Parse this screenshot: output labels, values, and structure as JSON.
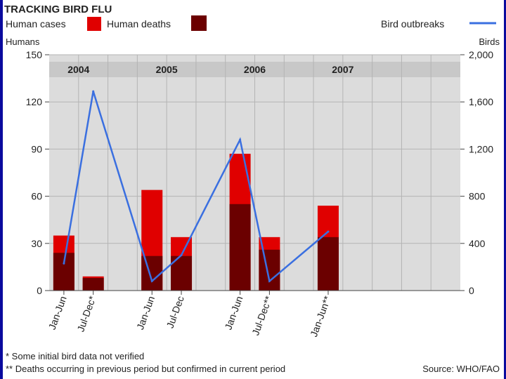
{
  "chart_data": {
    "type": "bar",
    "title": "TRACKING BIRD FLU",
    "legend": [
      {
        "name": "Human cases",
        "color": "#e00000"
      },
      {
        "name": "Human deaths",
        "color": "#6b0000"
      },
      {
        "name": "Bird outbreaks",
        "color": "#3a6fe0"
      }
    ],
    "ylabel_left": "Humans",
    "ylabel_right": "Birds",
    "ylim_left": [
      0,
      150
    ],
    "ylim_right": [
      0,
      2000
    ],
    "yticks_left": [
      "0",
      "30",
      "60",
      "90",
      "120",
      "150"
    ],
    "yticks_right": [
      "0",
      "400",
      "800",
      "1,200",
      "1,600",
      "2,000"
    ],
    "years": [
      "2004",
      "2005",
      "2006",
      "2007"
    ],
    "categories": [
      "Jan-Jun",
      "Jul-Dec*",
      "Jan-Jun",
      "Jul-Dec",
      "Jan-Jun",
      "Jul-Dec**",
      "Jan-Jun**"
    ],
    "category_slots": [
      0,
      1,
      3,
      4,
      6,
      7,
      9
    ],
    "slot_count": 14,
    "series": [
      {
        "name": "Human cases",
        "values": [
          35,
          9,
          64,
          34,
          87,
          34,
          54
        ]
      },
      {
        "name": "Human deaths",
        "values": [
          24,
          8,
          22,
          22,
          55,
          26,
          34
        ]
      },
      {
        "name": "Bird outbreaks",
        "values": [
          230,
          1690,
          80,
          300,
          1280,
          80,
          500
        ]
      }
    ],
    "grid": true,
    "footnotes": [
      "* Some initial bird data not verified",
      "** Deaths occurring in previous period but confirmed in current period"
    ],
    "source": "Source: WHO/FAO",
    "colors": {
      "cases": "#e00000",
      "deaths": "#6b0000",
      "birds": "#3a6fe0",
      "plot_bg": "#dcdcdc",
      "border": "#0a0a9e"
    }
  }
}
